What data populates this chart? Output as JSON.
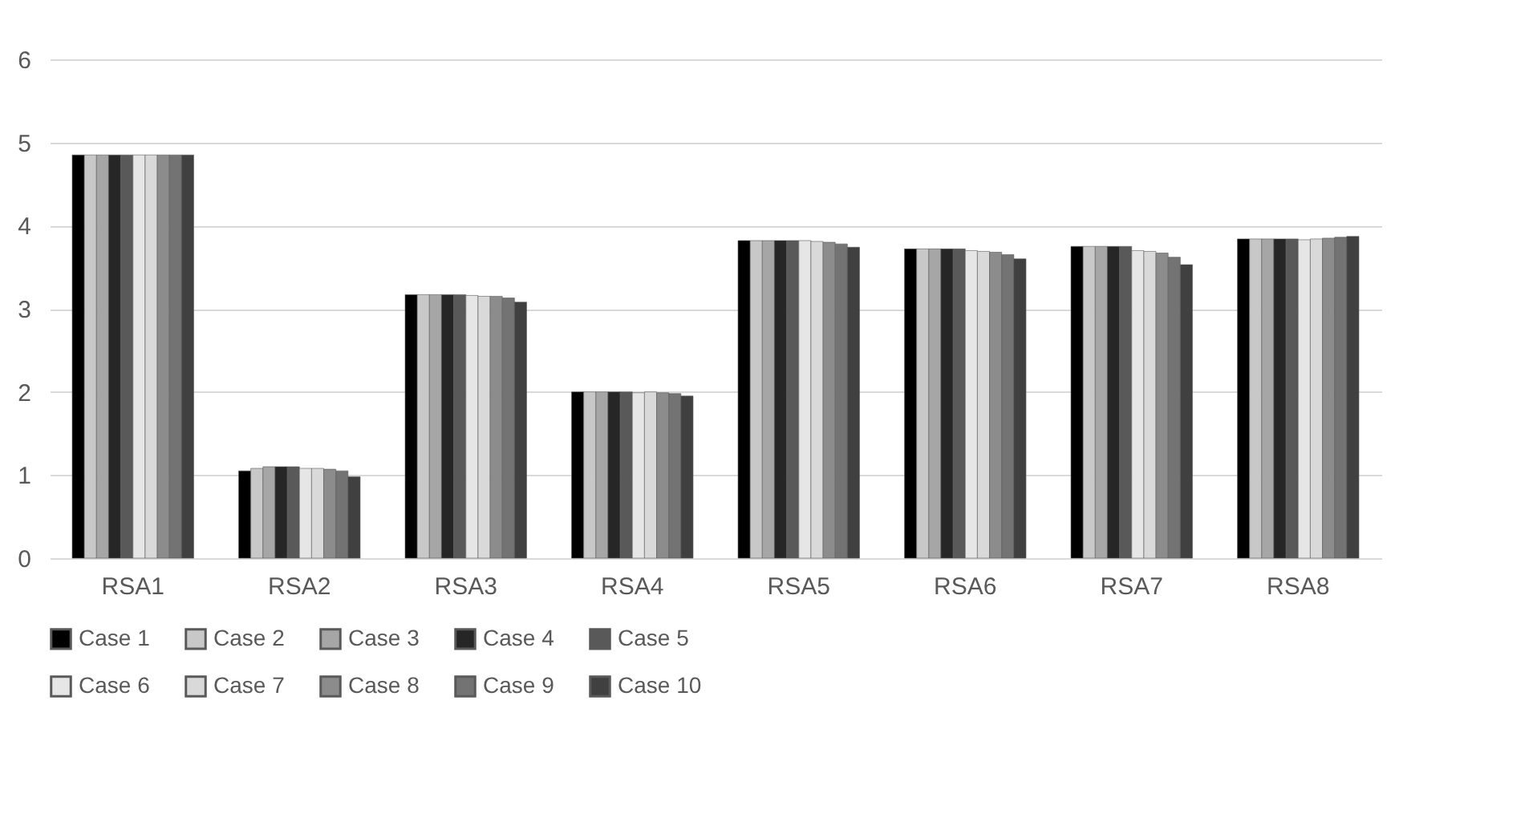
{
  "chart_data": {
    "type": "bar",
    "categories": [
      "RSA1",
      "RSA2",
      "RSA3",
      "RSA4",
      "RSA5",
      "RSA6",
      "RSA7",
      "RSA8"
    ],
    "series": [
      {
        "name": "Case 1",
        "color": "#000000",
        "values": [
          4.85,
          1.05,
          3.17,
          2.0,
          3.82,
          3.72,
          3.75,
          3.84
        ]
      },
      {
        "name": "Case 2",
        "color": "#c8c8c8",
        "values": [
          4.85,
          1.08,
          3.17,
          2.0,
          3.82,
          3.72,
          3.75,
          3.84
        ]
      },
      {
        "name": "Case 3",
        "color": "#a6a6a6",
        "values": [
          4.85,
          1.1,
          3.17,
          2.0,
          3.82,
          3.72,
          3.75,
          3.84
        ]
      },
      {
        "name": "Case 4",
        "color": "#262626",
        "values": [
          4.85,
          1.1,
          3.17,
          2.0,
          3.82,
          3.72,
          3.75,
          3.84
        ]
      },
      {
        "name": "Case 5",
        "color": "#595959",
        "values": [
          4.85,
          1.1,
          3.17,
          2.0,
          3.82,
          3.72,
          3.75,
          3.84
        ]
      },
      {
        "name": "Case 6",
        "color": "#e6e6e6",
        "values": [
          4.85,
          1.08,
          3.16,
          1.99,
          3.82,
          3.7,
          3.7,
          3.83
        ]
      },
      {
        "name": "Case 7",
        "color": "#d9d9d9",
        "values": [
          4.85,
          1.08,
          3.15,
          2.0,
          3.81,
          3.69,
          3.69,
          3.84
        ]
      },
      {
        "name": "Case 8",
        "color": "#8c8c8c",
        "values": [
          4.85,
          1.07,
          3.15,
          1.99,
          3.8,
          3.68,
          3.67,
          3.85
        ]
      },
      {
        "name": "Case 9",
        "color": "#737373",
        "values": [
          4.85,
          1.05,
          3.13,
          1.98,
          3.78,
          3.65,
          3.62,
          3.86
        ]
      },
      {
        "name": "Case 10",
        "color": "#404040",
        "values": [
          4.85,
          0.98,
          3.08,
          1.95,
          3.74,
          3.6,
          3.53,
          3.87
        ]
      }
    ],
    "ylim": [
      0,
      6
    ],
    "yticks": [
      0,
      1,
      2,
      3,
      4,
      5,
      6
    ],
    "grid": "y",
    "legend": "bottom"
  }
}
